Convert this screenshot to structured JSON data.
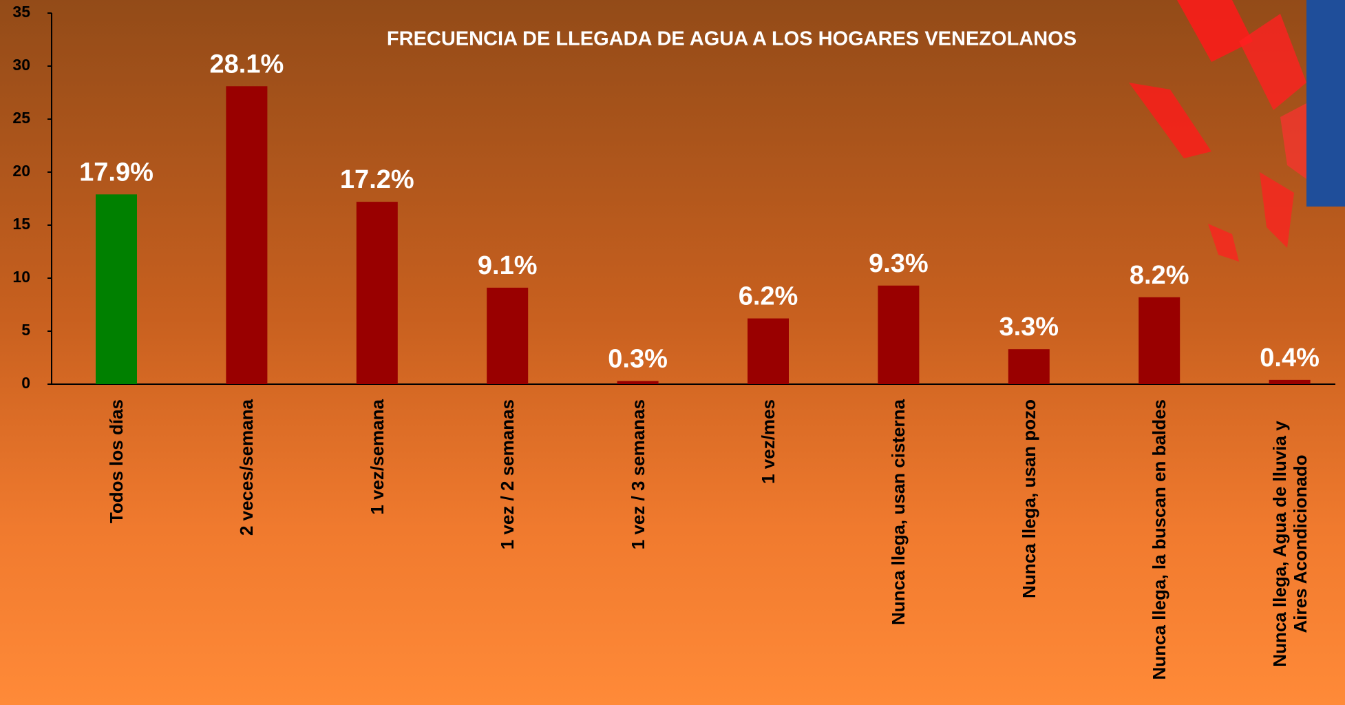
{
  "chart_data": {
    "type": "bar",
    "title": "FRECUENCIA DE LLEGADA DE AGUA A LOS HOGARES VENEZOLANOS",
    "categories": [
      "Todos los días",
      "2 veces/semana",
      "1 vez/semana",
      "1 vez / 2 semanas",
      "1 vez / 3 semanas",
      "1 vez/mes",
      "Nunca llega, usan cisterna",
      "Nunca llega, usan pozo",
      "Nunca llega, la buscan en baldes",
      "Nunca llega, Agua de lluvia y Aires Acondicionado"
    ],
    "values": [
      17.9,
      28.1,
      17.2,
      9.1,
      0.3,
      6.2,
      9.3,
      3.3,
      8.2,
      0.4
    ],
    "value_labels": [
      "17.9%",
      "28.1%",
      "17.2%",
      "9.1%",
      "0.3%",
      "6.2%",
      "9.3%",
      "3.3%",
      "8.2%",
      "0.4%"
    ],
    "colors": [
      "#008000",
      "#990000",
      "#990000",
      "#990000",
      "#990000",
      "#990000",
      "#990000",
      "#990000",
      "#990000",
      "#990000"
    ],
    "ylim": [
      0,
      35
    ],
    "yticks": [
      0,
      5,
      10,
      15,
      20,
      25,
      30,
      35
    ],
    "grid": false
  }
}
